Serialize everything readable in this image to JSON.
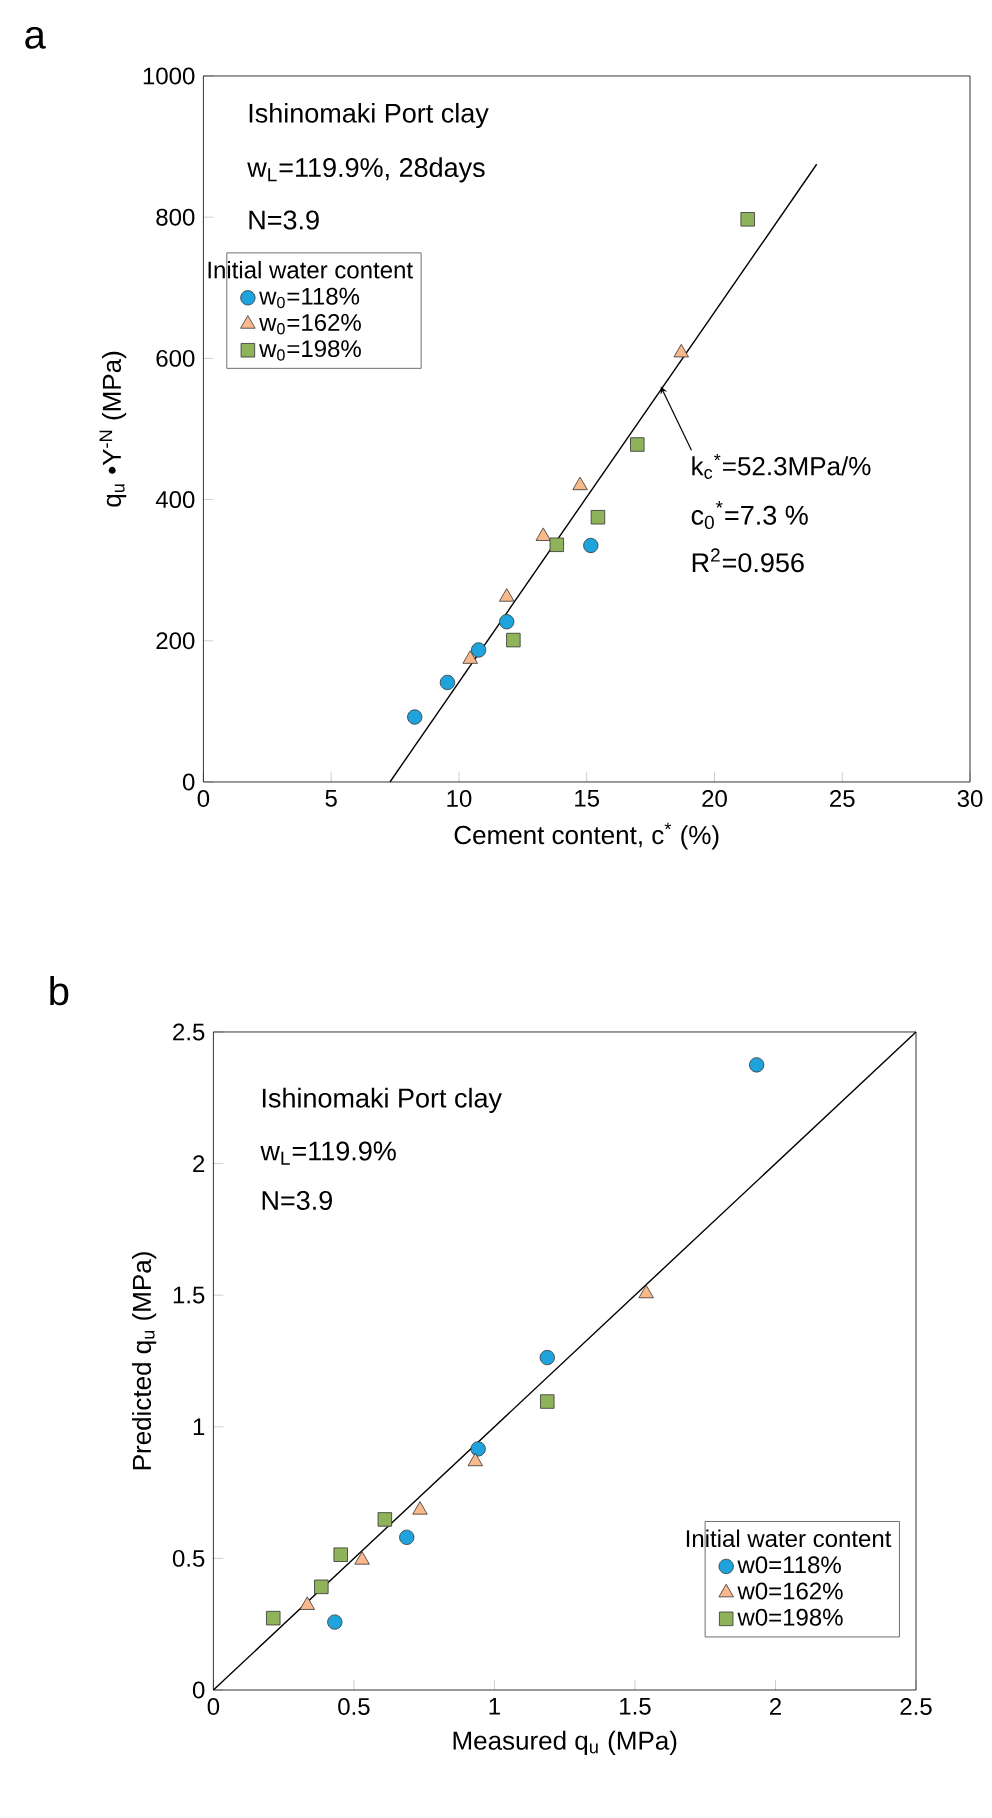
{
  "chart_data": [
    {
      "type": "scatter",
      "title": "a",
      "xlabel": "Cement content, c$^{*}$  (%)",
      "ylabel": "q$_{u}$ •Y$^{-N}$  (MPa)",
      "legend_title": "Initial water content",
      "xlim": [
        0,
        30
      ],
      "ylim": [
        0,
        1000
      ],
      "xticks": [
        0,
        5,
        10,
        15,
        20,
        25,
        30
      ],
      "yticks": [
        0,
        200,
        400,
        600,
        800,
        1000
      ],
      "legend": "top left",
      "grid": false,
      "annotations": [
        "Ishinomaki Port clay",
        "w$_{L}$=119.9%, 28days",
        "N=3.9",
        {
          "text": "k$_{c}$$^{*}$=52.3MPa/%",
          "x": 17.9,
          "y": 560
        },
        "c$_{0}$$^{*}$=7.3 %",
        "R$^{2}$=0.956"
      ],
      "series": [
        {
          "name": "w$_{0}$=118%",
          "color": "#1fa3dc",
          "marker": "circle",
          "x": [
            8.27,
            9.55,
            10.77,
            11.87,
            15.16
          ],
          "values": [
            92,
            141,
            187,
            227,
            335
          ]
        },
        {
          "name": "w$_{0}$=162%",
          "color": "#f9b98a",
          "marker": "triangle",
          "x": [
            10.44,
            11.87,
            13.3,
            14.74,
            18.7
          ],
          "values": [
            174,
            262,
            348,
            420,
            608
          ]
        },
        {
          "name": "w$_{0}$=198%",
          "color": "#8fb35a",
          "marker": "square",
          "x": [
            12.13,
            13.83,
            15.44,
            16.98,
            21.3
          ],
          "values": [
            201,
            336,
            375,
            478,
            797
          ]
        },
        {
          "type": "line",
          "color": "#000000",
          "marker": "none",
          "x": [
            7.3,
            24.0
          ],
          "values": [
            0,
            875
          ]
        }
      ]
    },
    {
      "type": "scatter",
      "title": "b",
      "xlabel": "Measured q$_{u}$  (MPa)",
      "ylabel": "Predicted q$_{u}$  (MPa)",
      "legend_title": "Initial water content",
      "xlim": [
        0,
        2.5
      ],
      "ylim": [
        0,
        2.5
      ],
      "xticks": [
        0,
        0.5,
        1,
        1.5,
        2,
        2.5
      ],
      "yticks": [
        0,
        0.5,
        1,
        1.5,
        2,
        2.5
      ],
      "legend": "bottom right",
      "grid": false,
      "annotations": [
        "Ishinomaki Port clay",
        "w$_{L}$=119.9%",
        "N=3.9"
      ],
      "series": [
        {
          "name": "w0=118%",
          "color": "#1fa3dc",
          "marker": "circle",
          "x": [
            1.933,
            1.188,
            0.942,
            0.688,
            0.432
          ],
          "values": [
            2.375,
            1.263,
            0.916,
            0.58,
            0.258
          ]
        },
        {
          "name": "w0=162%",
          "color": "#f9b98a",
          "marker": "triangle",
          "x": [
            1.54,
            0.932,
            0.735,
            0.529,
            0.334
          ],
          "values": [
            1.506,
            0.868,
            0.684,
            0.494,
            0.322
          ]
        },
        {
          "name": "w0=198%",
          "color": "#8fb35a",
          "marker": "square",
          "x": [
            1.188,
            0.61,
            0.453,
            0.384,
            0.213
          ],
          "values": [
            1.096,
            0.648,
            0.514,
            0.392,
            0.273
          ]
        },
        {
          "type": "line",
          "color": "#000000",
          "marker": "none",
          "x": [
            0,
            2.5
          ],
          "values": [
            0,
            2.5
          ]
        }
      ]
    }
  ]
}
